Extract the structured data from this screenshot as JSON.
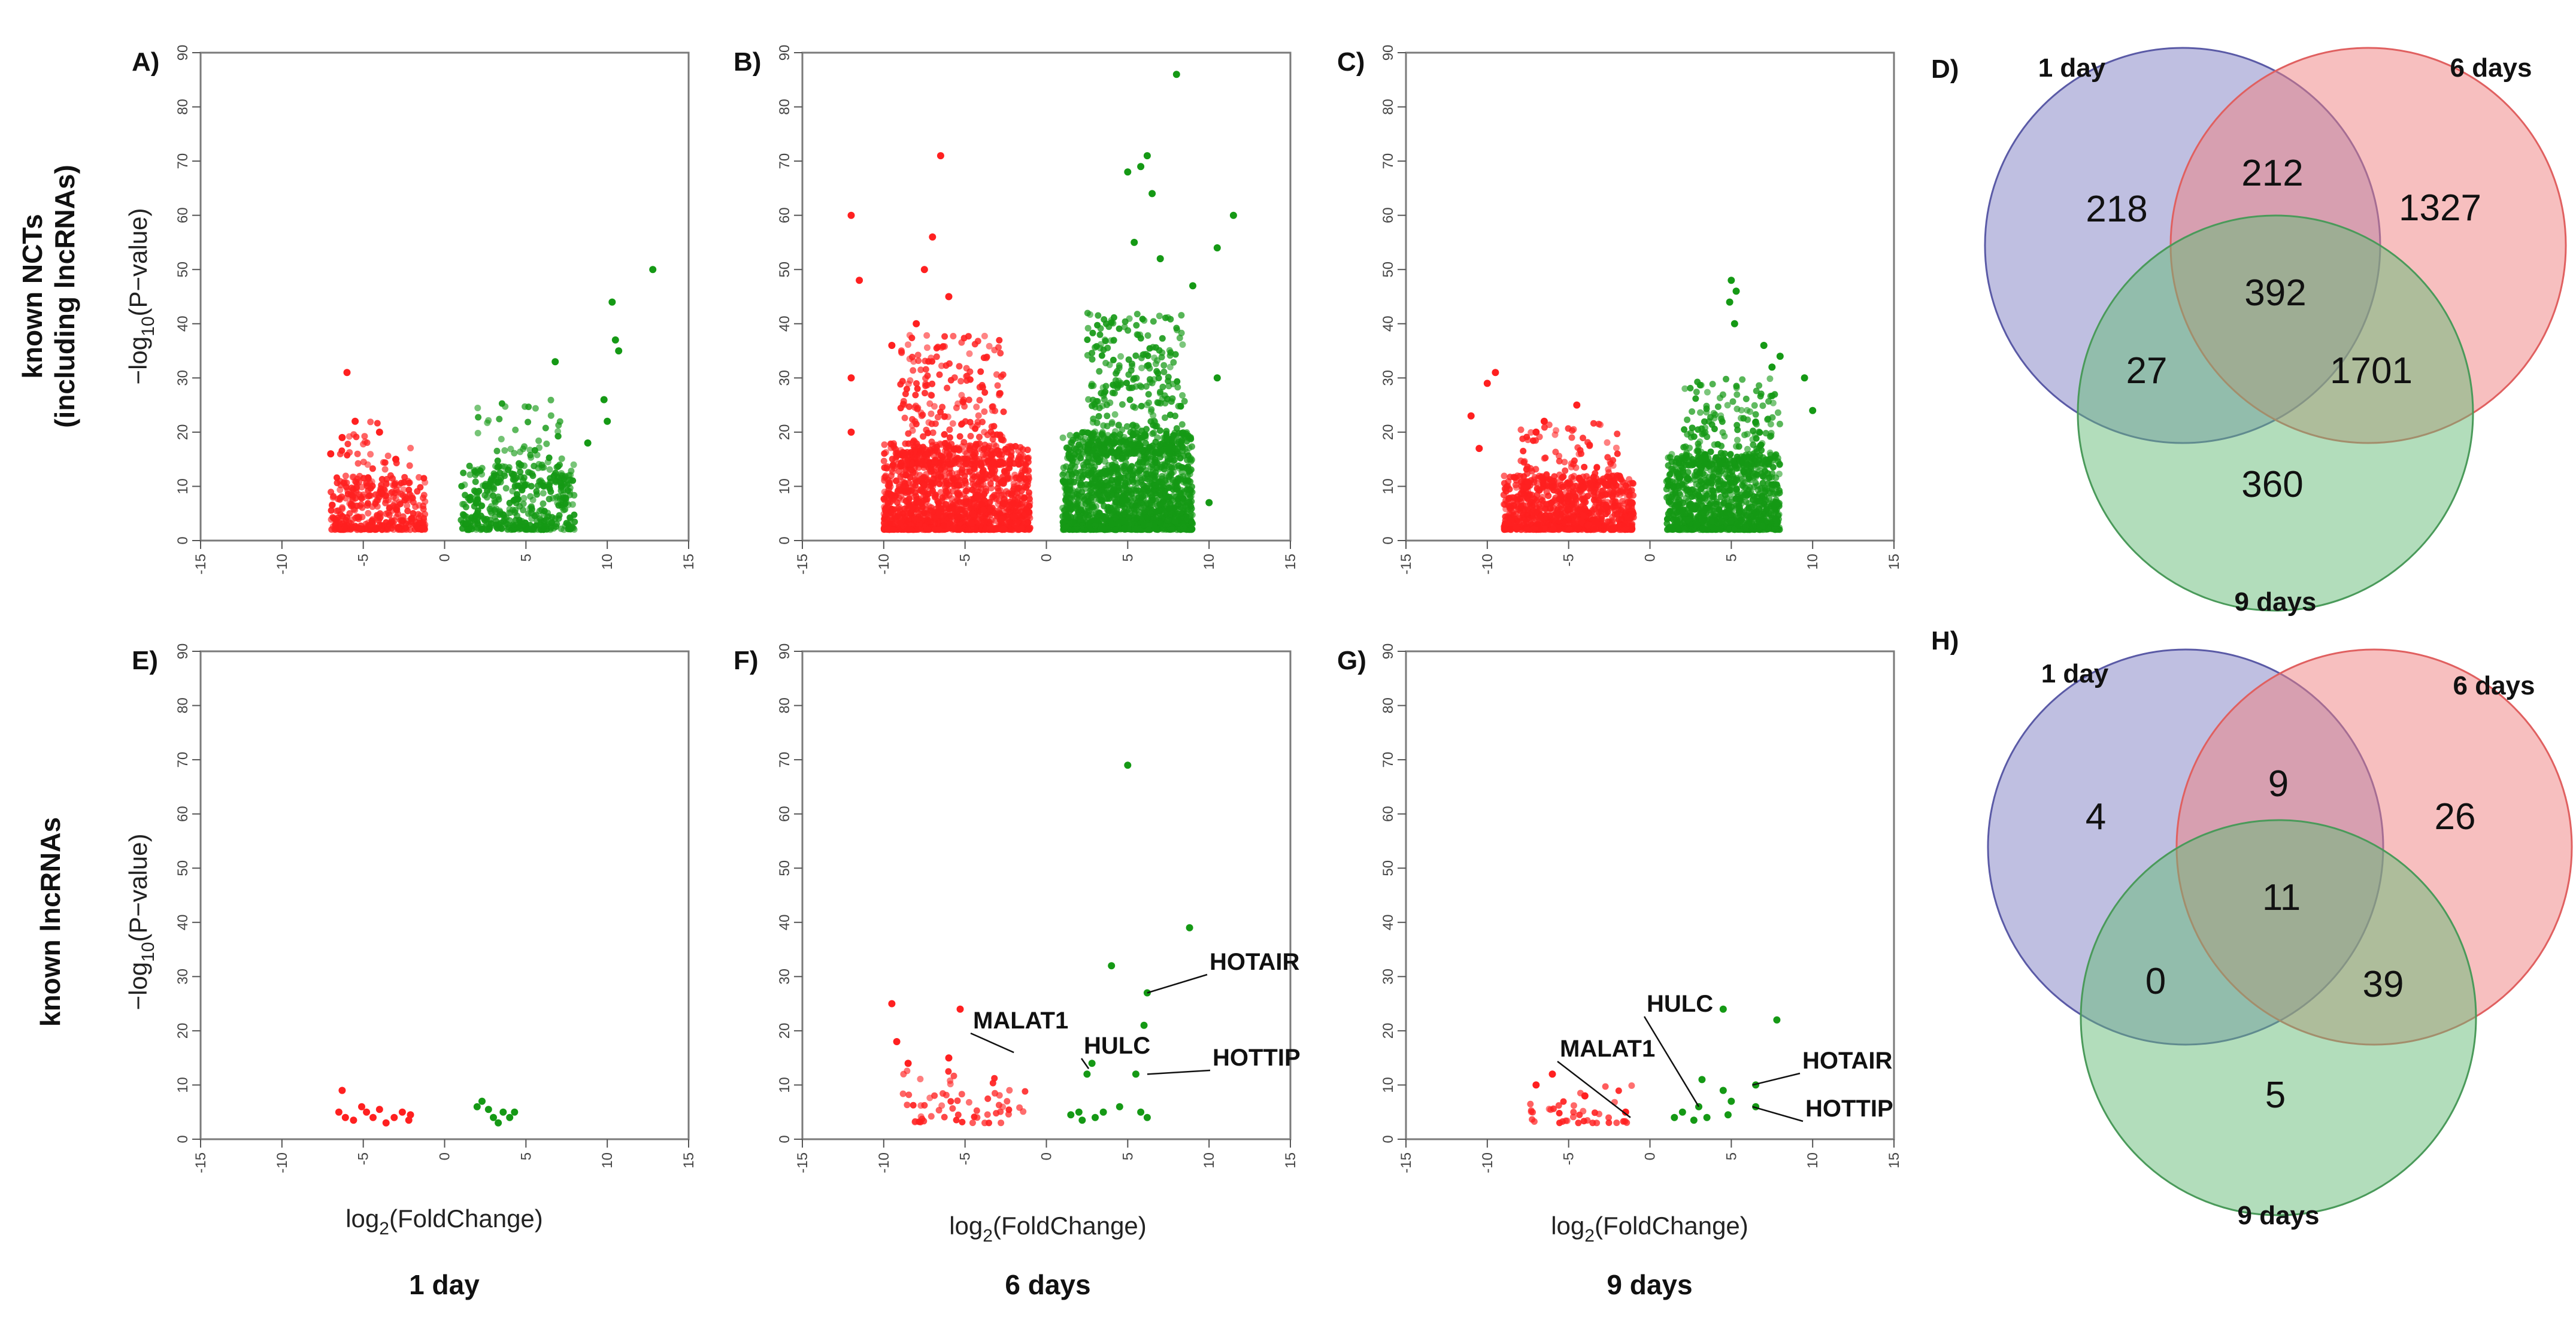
{
  "row_labels": {
    "top": [
      "known NCTs",
      "(including lncRNAs)"
    ],
    "bottom": "known lncRNAs"
  },
  "column_labels": [
    "1 day",
    "6 days",
    "9 days"
  ],
  "axis_text": {
    "x_label": "log",
    "x_label_sub": "2",
    "x_label_rest": "(FoldChange)",
    "y_label": "−log",
    "y_label_sub": "10",
    "y_label_rest": "(P−value)"
  },
  "colors": {
    "down": "#ff2020",
    "up": "#159915",
    "venn_1day": "#7f7fc3",
    "venn_6days": "#f08080",
    "venn_9days": "#66bb77"
  },
  "chart_data": [
    {
      "id": "A",
      "label": "A)",
      "type": "scatter",
      "row": "top",
      "condition": "1 day",
      "xlabel": "",
      "ylabel": "-log10(P-value)",
      "xlim": [
        -15,
        15
      ],
      "ylim": [
        0,
        90
      ],
      "xticks": [
        -15,
        -10,
        -5,
        0,
        5,
        10,
        15
      ],
      "yticks": [
        0,
        10,
        20,
        30,
        40,
        50,
        60,
        70,
        80,
        90
      ],
      "series": [
        {
          "name": "down",
          "clouds": [
            {
              "x": [
                -7,
                -1.2
              ],
              "y": [
                2,
                12
              ],
              "n": 320
            },
            {
              "x": [
                -6.5,
                -2
              ],
              "y": [
                8,
                22
              ],
              "n": 70
            }
          ],
          "points": [
            [
              -6,
              31
            ],
            [
              -5.5,
              22
            ],
            [
              -4,
              20
            ],
            [
              -7,
              16
            ],
            [
              -3,
              15
            ],
            [
              -6.3,
              19
            ]
          ]
        },
        {
          "name": "up",
          "clouds": [
            {
              "x": [
                1,
                8
              ],
              "y": [
                2,
                14
              ],
              "n": 380
            },
            {
              "x": [
                2,
                7.5
              ],
              "y": [
                10,
                26
              ],
              "n": 90
            }
          ],
          "points": [
            [
              12.8,
              50
            ],
            [
              10.3,
              44
            ],
            [
              10.5,
              37
            ],
            [
              10.7,
              35
            ],
            [
              6.8,
              33
            ],
            [
              9.8,
              26
            ],
            [
              10,
              22
            ],
            [
              8.8,
              18
            ]
          ]
        }
      ]
    },
    {
      "id": "B",
      "label": "B)",
      "type": "scatter",
      "row": "top",
      "condition": "6 days",
      "xlabel": "",
      "ylabel": "",
      "xlim": [
        -15,
        15
      ],
      "ylim": [
        0,
        90
      ],
      "xticks": [
        -15,
        -10,
        -5,
        0,
        5,
        10,
        15
      ],
      "yticks": [
        0,
        10,
        20,
        30,
        40,
        50,
        60,
        70,
        80,
        90
      ],
      "series": [
        {
          "name": "down",
          "clouds": [
            {
              "x": [
                -10,
                -1
              ],
              "y": [
                2,
                18
              ],
              "n": 1400
            },
            {
              "x": [
                -9,
                -2.5
              ],
              "y": [
                14,
                38
              ],
              "n": 300
            }
          ],
          "points": [
            [
              -6.5,
              71
            ],
            [
              -12,
              60
            ],
            [
              -11.5,
              48
            ],
            [
              -7,
              56
            ],
            [
              -7.5,
              50
            ],
            [
              -12,
              30
            ],
            [
              -12,
              20
            ],
            [
              -8,
              40
            ],
            [
              -6,
              45
            ],
            [
              -9.5,
              36
            ]
          ]
        },
        {
          "name": "up",
          "clouds": [
            {
              "x": [
                1,
                9
              ],
              "y": [
                2,
                20
              ],
              "n": 1500
            },
            {
              "x": [
                2.5,
                8.5
              ],
              "y": [
                16,
                42
              ],
              "n": 350
            }
          ],
          "points": [
            [
              8,
              86
            ],
            [
              6.2,
              71
            ],
            [
              5.8,
              69
            ],
            [
              5,
              68
            ],
            [
              11.5,
              60
            ],
            [
              10.5,
              54
            ],
            [
              6.5,
              64
            ],
            [
              5.4,
              55
            ],
            [
              9,
              47
            ],
            [
              7,
              52
            ],
            [
              10.5,
              30
            ],
            [
              10,
              7
            ]
          ]
        }
      ]
    },
    {
      "id": "C",
      "label": "C)",
      "type": "scatter",
      "row": "top",
      "condition": "9 days",
      "xlabel": "",
      "ylabel": "",
      "xlim": [
        -15,
        15
      ],
      "ylim": [
        0,
        90
      ],
      "xticks": [
        -15,
        -10,
        -5,
        0,
        5,
        10,
        15
      ],
      "yticks": [
        0,
        10,
        20,
        30,
        40,
        50,
        60,
        70,
        80,
        90
      ],
      "series": [
        {
          "name": "down",
          "clouds": [
            {
              "x": [
                -9,
                -1
              ],
              "y": [
                2,
                12
              ],
              "n": 900
            },
            {
              "x": [
                -8,
                -2
              ],
              "y": [
                10,
                22
              ],
              "n": 120
            }
          ],
          "points": [
            [
              -9.5,
              31
            ],
            [
              -10,
              29
            ],
            [
              -11,
              23
            ],
            [
              -10.5,
              17
            ],
            [
              -4.5,
              25
            ],
            [
              -6.5,
              22
            ],
            [
              -7,
              20
            ]
          ]
        },
        {
          "name": "up",
          "clouds": [
            {
              "x": [
                1,
                8
              ],
              "y": [
                2,
                16
              ],
              "n": 1000
            },
            {
              "x": [
                2,
                8
              ],
              "y": [
                14,
                30
              ],
              "n": 200
            }
          ],
          "points": [
            [
              5,
              48
            ],
            [
              5.3,
              46
            ],
            [
              4.9,
              44
            ],
            [
              5.2,
              40
            ],
            [
              7,
              36
            ],
            [
              9.5,
              30
            ],
            [
              10,
              24
            ],
            [
              8,
              34
            ],
            [
              7.5,
              32
            ]
          ]
        }
      ]
    },
    {
      "id": "E",
      "label": "E)",
      "type": "scatter",
      "row": "bottom",
      "condition": "1 day",
      "xlabel": "log2(FoldChange)",
      "ylabel": "-log10(P-value)",
      "xlim": [
        -15,
        15
      ],
      "ylim": [
        0,
        90
      ],
      "xticks": [
        -15,
        -10,
        -5,
        0,
        5,
        10,
        15
      ],
      "yticks": [
        0,
        10,
        20,
        30,
        40,
        50,
        60,
        70,
        80,
        90
      ],
      "series": [
        {
          "name": "down",
          "points": [
            [
              -6.3,
              9
            ],
            [
              -6.5,
              5
            ],
            [
              -6.1,
              4
            ],
            [
              -5.6,
              3.5
            ],
            [
              -5.1,
              6
            ],
            [
              -4.8,
              5
            ],
            [
              -4.4,
              4
            ],
            [
              -4,
              5.5
            ],
            [
              -3.6,
              3
            ],
            [
              -3.1,
              4
            ],
            [
              -2.6,
              5
            ],
            [
              -2.2,
              3.5
            ],
            [
              -2.1,
              4.5
            ]
          ]
        },
        {
          "name": "up",
          "points": [
            [
              2,
              6
            ],
            [
              2.3,
              7
            ],
            [
              2.7,
              5.5
            ],
            [
              3,
              4
            ],
            [
              3.3,
              3
            ],
            [
              3.6,
              5
            ],
            [
              4,
              4
            ],
            [
              4.3,
              5
            ]
          ]
        }
      ]
    },
    {
      "id": "F",
      "label": "F)",
      "type": "scatter",
      "row": "bottom",
      "condition": "6 days",
      "xlabel": "log2(FoldChange)",
      "ylabel": "",
      "xlim": [
        -15,
        15
      ],
      "ylim": [
        0,
        90
      ],
      "xticks": [
        -15,
        -10,
        -5,
        0,
        5,
        10,
        15
      ],
      "yticks": [
        0,
        10,
        20,
        30,
        40,
        50,
        60,
        70,
        80,
        90
      ],
      "series": [
        {
          "name": "down",
          "clouds": [
            {
              "x": [
                -9.5,
                -1.2
              ],
              "y": [
                3,
                13
              ],
              "n": 60
            }
          ],
          "points": [
            [
              -9.5,
              25
            ],
            [
              -9.2,
              18
            ],
            [
              -5.3,
              24
            ],
            [
              -8.5,
              14
            ],
            [
              -6,
              15
            ]
          ]
        },
        {
          "name": "up",
          "points": [
            [
              5,
              69
            ],
            [
              8.8,
              39
            ],
            [
              4,
              32
            ],
            [
              6.2,
              27
            ],
            [
              6,
              21
            ],
            [
              2.5,
              12
            ],
            [
              2.8,
              14
            ],
            [
              5.5,
              12
            ],
            [
              1.5,
              4.5
            ],
            [
              2,
              5
            ],
            [
              3,
              4
            ],
            [
              4.5,
              6
            ],
            [
              5.8,
              5
            ],
            [
              6.2,
              4
            ],
            [
              3.5,
              5
            ],
            [
              2.2,
              3.5
            ]
          ]
        }
      ],
      "annotations": [
        {
          "text": "MALAT1",
          "x": -2,
          "y": 16
        },
        {
          "text": "HULC",
          "x": 2.6,
          "y": 13
        },
        {
          "text": "HOTAIR",
          "x": 6.2,
          "y": 27
        },
        {
          "text": "HOTTIP",
          "x": 6.2,
          "y": 12
        }
      ]
    },
    {
      "id": "G",
      "label": "G)",
      "type": "scatter",
      "row": "bottom",
      "condition": "9 days",
      "xlabel": "log2(FoldChange)",
      "ylabel": "",
      "xlim": [
        -15,
        15
      ],
      "ylim": [
        0,
        90
      ],
      "xticks": [
        -15,
        -10,
        -5,
        0,
        5,
        10,
        15
      ],
      "yticks": [
        0,
        10,
        20,
        30,
        40,
        50,
        60,
        70,
        80,
        90
      ],
      "series": [
        {
          "name": "down",
          "clouds": [
            {
              "x": [
                -7.5,
                -1
              ],
              "y": [
                3,
                10
              ],
              "n": 40
            }
          ],
          "points": [
            [
              -6,
              12
            ],
            [
              -7,
              10
            ],
            [
              -4,
              8
            ],
            [
              -1.5,
              5
            ]
          ]
        },
        {
          "name": "up",
          "points": [
            [
              4.5,
              24
            ],
            [
              7.8,
              22
            ],
            [
              3.2,
              11
            ],
            [
              6.5,
              10
            ],
            [
              4.5,
              9
            ],
            [
              3,
              6
            ],
            [
              5,
              7
            ],
            [
              6.5,
              6
            ],
            [
              1.5,
              4
            ],
            [
              2,
              5
            ],
            [
              2.7,
              3.5
            ],
            [
              3.5,
              4
            ],
            [
              4.8,
              4.5
            ]
          ]
        }
      ],
      "annotations": [
        {
          "text": "MALAT1",
          "x": -1.2,
          "y": 4
        },
        {
          "text": "HULC",
          "x": 3,
          "y": 6
        },
        {
          "text": "HOTAIR",
          "x": 6.3,
          "y": 10
        },
        {
          "text": "HOTTIP",
          "x": 6.3,
          "y": 6
        }
      ]
    }
  ],
  "venn": [
    {
      "id": "D",
      "label": "D)",
      "sets": [
        "1 day",
        "6 days",
        "9 days"
      ],
      "regions": {
        "only_1day": 218,
        "only_6days": 1327,
        "only_9days": 360,
        "1day_6days": 212,
        "1day_9days": 27,
        "6days_9days": 1701,
        "all_three": 392
      }
    },
    {
      "id": "H",
      "label": "H)",
      "sets": [
        "1 day",
        "6 days",
        "9 days"
      ],
      "regions": {
        "only_1day": 4,
        "only_6days": 26,
        "only_9days": 5,
        "1day_6days": 9,
        "1day_9days": 0,
        "6days_9days": 39,
        "all_three": 11
      }
    }
  ]
}
